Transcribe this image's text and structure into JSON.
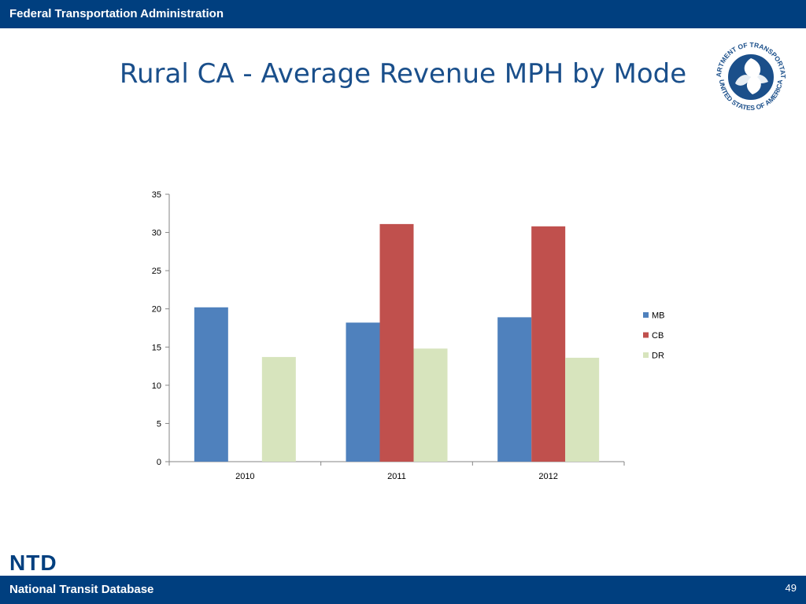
{
  "header": {
    "title": "Federal Transportation Administration"
  },
  "slide": {
    "title": "Rural CA - Average Revenue MPH by Mode"
  },
  "seal": {
    "top_text": "DEPARTMENT OF TRANSPORTATION",
    "bottom_text": "UNITED STATES OF AMERICA"
  },
  "footer": {
    "logo": "NTD",
    "title": "National Transit Database",
    "page_number": "49"
  },
  "colors": {
    "brand_blue": "#003f7f",
    "title_blue": "#1a4f8b",
    "MB": "#4f81bd",
    "CB": "#c0504d",
    "DR": "#d7e4bd"
  },
  "chart_data": {
    "type": "bar",
    "categories": [
      "2010",
      "2011",
      "2012"
    ],
    "series": [
      {
        "name": "MB",
        "values": [
          20.2,
          18.2,
          18.9
        ]
      },
      {
        "name": "CB",
        "values": [
          0,
          31.1,
          30.8
        ]
      },
      {
        "name": "DR",
        "values": [
          13.7,
          14.8,
          13.6
        ]
      }
    ],
    "ylim": [
      0,
      35
    ],
    "yticks": [
      "0",
      "5",
      "10",
      "15",
      "20",
      "25",
      "30",
      "35"
    ],
    "legend": "right",
    "grid": false
  }
}
